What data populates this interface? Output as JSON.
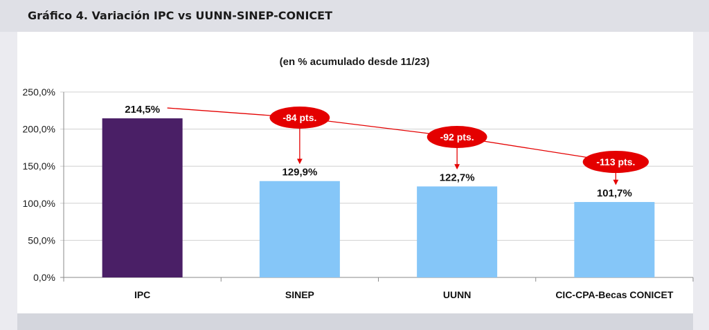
{
  "page_title": "Gráfico 4. Variación IPC vs UUNN-SINEP-CONICET",
  "colors": {
    "header_bg": "#dfe0e6",
    "ipc_bar": "#4a1f66",
    "other_bars": "#85c6f8",
    "annotation_red": "#e40000"
  },
  "chart_data": {
    "type": "bar",
    "title": "(en % acumulado desde 11/23)",
    "xlabel": "",
    "ylabel": "",
    "ylim": [
      0,
      250
    ],
    "yticks": [
      "0,0%",
      "50,0%",
      "100,0%",
      "150,0%",
      "200,0%",
      "250,0%"
    ],
    "grid": true,
    "legend": "none",
    "categories": [
      "IPC",
      "SINEP",
      "UUNN",
      "CIC-CPA-Becas CONICET"
    ],
    "values": [
      214.5,
      129.9,
      122.7,
      101.7
    ],
    "data_labels": [
      "214,5%",
      "129,9%",
      "122,7%",
      "101,7%"
    ],
    "annotations": [
      "-84 pts.",
      "-92 pts.",
      "-113 pts."
    ]
  }
}
